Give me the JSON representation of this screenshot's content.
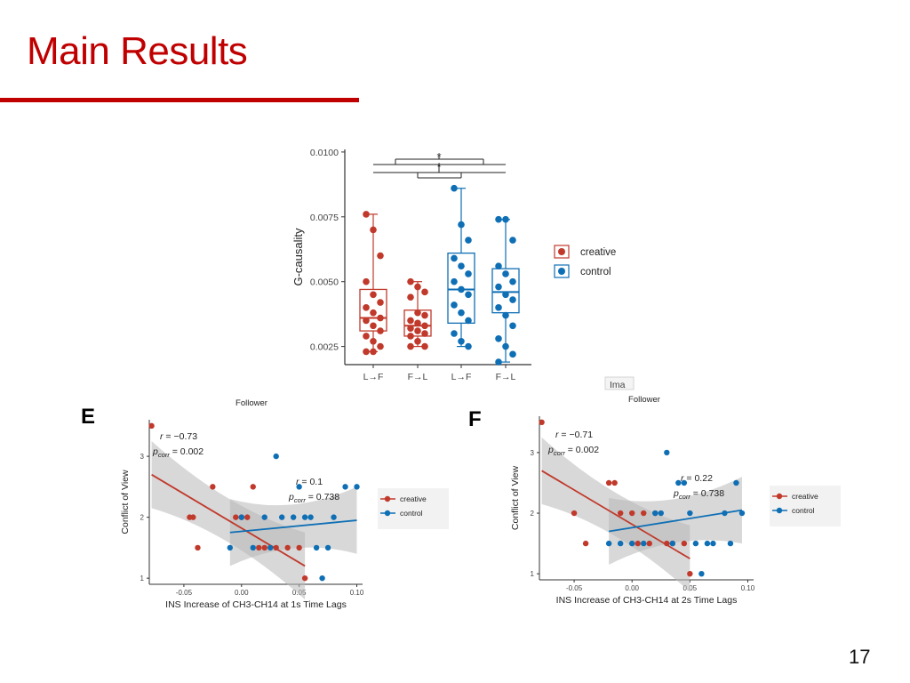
{
  "slide": {
    "title": "Main Results",
    "page_number": "17"
  },
  "fragment_text": "Ima",
  "colors": {
    "creative": "#c0392b",
    "control": "#0f6fb5",
    "title": "#c00000",
    "ci_band": "#b8b8b8"
  },
  "chart_data": [
    {
      "type": "box",
      "id": "boxplot",
      "title": "",
      "ylabel": "G-causality",
      "xlabel": "",
      "ylim": [
        0.0018,
        0.0101
      ],
      "yticks": [
        "0.0025",
        "0.0050",
        "0.0075",
        "0.0100"
      ],
      "categories": [
        "L→F",
        "F→L",
        "L→F",
        "F→L"
      ],
      "legend": [
        "creative",
        "control"
      ],
      "legend_position": "right",
      "significance_markers": [
        "*",
        "*"
      ],
      "boxes": [
        {
          "category": "L→F",
          "group": "creative",
          "min": 0.0023,
          "q1": 0.0031,
          "median": 0.0036,
          "q3": 0.0047,
          "max": 0.0076,
          "points": [
            0.0076,
            0.007,
            0.006,
            0.005,
            0.0045,
            0.0042,
            0.004,
            0.0038,
            0.0036,
            0.0035,
            0.0033,
            0.0031,
            0.0029,
            0.0027,
            0.0025,
            0.0023,
            0.0023
          ]
        },
        {
          "category": "F→L",
          "group": "creative",
          "min": 0.0025,
          "q1": 0.0029,
          "median": 0.0033,
          "q3": 0.0039,
          "max": 0.005,
          "points": [
            0.005,
            0.0048,
            0.0046,
            0.0044,
            0.0038,
            0.0037,
            0.0035,
            0.0034,
            0.0033,
            0.0032,
            0.0031,
            0.003,
            0.0029,
            0.0027,
            0.0025,
            0.0025
          ]
        },
        {
          "category": "L→F",
          "group": "control",
          "min": 0.0025,
          "q1": 0.0034,
          "median": 0.0047,
          "q3": 0.0061,
          "max": 0.0086,
          "points": [
            0.0086,
            0.0072,
            0.0066,
            0.0059,
            0.0056,
            0.0053,
            0.005,
            0.0047,
            0.0045,
            0.0041,
            0.0038,
            0.0035,
            0.003,
            0.0027,
            0.0025
          ]
        },
        {
          "category": "F→L",
          "group": "control",
          "min": 0.0019,
          "q1": 0.0038,
          "median": 0.0046,
          "q3": 0.0055,
          "max": 0.0074,
          "points": [
            0.0074,
            0.0074,
            0.0066,
            0.0056,
            0.0053,
            0.005,
            0.0048,
            0.0045,
            0.0043,
            0.004,
            0.0037,
            0.0033,
            0.0028,
            0.0025,
            0.0022,
            0.0019
          ]
        }
      ]
    },
    {
      "type": "scatter",
      "id": "scatter-e",
      "panel_label": "E",
      "title": "Follower",
      "xlabel": "INS Increase of CH3-CH14 at 1s Time Lags",
      "ylabel": "Conflict of View",
      "xlim": [
        -0.08,
        0.105
      ],
      "ylim": [
        0.9,
        3.6
      ],
      "xticks": [
        "-0.05",
        "0.00",
        "0.05",
        "0.10"
      ],
      "yticks": [
        "1",
        "2",
        "3"
      ],
      "legend": [
        "creative",
        "control"
      ],
      "legend_position": "right",
      "series": [
        {
          "name": "creative",
          "points": [
            [
              -0.078,
              3.5
            ],
            [
              -0.045,
              2.0
            ],
            [
              -0.042,
              2.0
            ],
            [
              -0.038,
              1.5
            ],
            [
              -0.025,
              2.5
            ],
            [
              -0.005,
              2.0
            ],
            [
              0.0,
              2.0
            ],
            [
              0.005,
              2.0
            ],
            [
              0.01,
              2.5
            ],
            [
              0.015,
              1.5
            ],
            [
              0.02,
              1.5
            ],
            [
              0.03,
              1.5
            ],
            [
              0.04,
              1.5
            ],
            [
              0.05,
              1.5
            ],
            [
              0.055,
              1.0
            ]
          ],
          "fit": [
            [
              -0.078,
              2.7
            ],
            [
              0.055,
              1.2
            ]
          ],
          "stats": [
            "r = −0.73",
            "p_corr = 0.002"
          ]
        },
        {
          "name": "control",
          "points": [
            [
              -0.01,
              1.5
            ],
            [
              0.0,
              2.0
            ],
            [
              0.01,
              1.5
            ],
            [
              0.02,
              2.0
            ],
            [
              0.025,
              1.5
            ],
            [
              0.03,
              3.0
            ],
            [
              0.035,
              2.0
            ],
            [
              0.045,
              2.0
            ],
            [
              0.05,
              2.5
            ],
            [
              0.055,
              2.0
            ],
            [
              0.06,
              2.0
            ],
            [
              0.065,
              1.5
            ],
            [
              0.07,
              1.0
            ],
            [
              0.075,
              1.5
            ],
            [
              0.08,
              2.0
            ],
            [
              0.09,
              2.5
            ],
            [
              0.1,
              2.5
            ]
          ],
          "fit": [
            [
              -0.01,
              1.75
            ],
            [
              0.1,
              1.95
            ]
          ],
          "stats": [
            "r = 0.1",
            "p_corr = 0.738"
          ]
        }
      ]
    },
    {
      "type": "scatter",
      "id": "scatter-f",
      "panel_label": "F",
      "title": "Follower",
      "xlabel": "INS Increase of CH3-CH14 at 2s Time Lags",
      "ylabel": "Conflict of View",
      "xlim": [
        -0.08,
        0.105
      ],
      "ylim": [
        0.9,
        3.6
      ],
      "xticks": [
        "-0.05",
        "0.00",
        "0.05",
        "0.10"
      ],
      "yticks": [
        "1",
        "2",
        "3"
      ],
      "legend": [
        "creative",
        "control"
      ],
      "legend_position": "right",
      "series": [
        {
          "name": "creative",
          "points": [
            [
              -0.078,
              3.5
            ],
            [
              -0.05,
              2.0
            ],
            [
              -0.04,
              1.5
            ],
            [
              -0.02,
              2.5
            ],
            [
              -0.015,
              2.5
            ],
            [
              -0.01,
              2.0
            ],
            [
              0.0,
              2.0
            ],
            [
              0.005,
              1.5
            ],
            [
              0.01,
              2.0
            ],
            [
              0.015,
              1.5
            ],
            [
              0.02,
              2.0
            ],
            [
              0.03,
              1.5
            ],
            [
              0.035,
              1.5
            ],
            [
              0.045,
              1.5
            ],
            [
              0.05,
              1.0
            ]
          ],
          "fit": [
            [
              -0.078,
              2.7
            ],
            [
              0.05,
              1.25
            ]
          ],
          "stats": [
            "r = −0.71",
            "p_corr = 0.002"
          ]
        },
        {
          "name": "control",
          "points": [
            [
              -0.02,
              1.5
            ],
            [
              -0.01,
              1.5
            ],
            [
              0.0,
              1.5
            ],
            [
              0.01,
              1.5
            ],
            [
              0.02,
              2.0
            ],
            [
              0.025,
              2.0
            ],
            [
              0.03,
              3.0
            ],
            [
              0.035,
              1.5
            ],
            [
              0.04,
              2.5
            ],
            [
              0.045,
              2.5
            ],
            [
              0.05,
              2.0
            ],
            [
              0.055,
              1.5
            ],
            [
              0.06,
              1.0
            ],
            [
              0.065,
              1.5
            ],
            [
              0.07,
              1.5
            ],
            [
              0.08,
              2.0
            ],
            [
              0.085,
              1.5
            ],
            [
              0.09,
              2.5
            ],
            [
              0.095,
              2.0
            ]
          ],
          "fit": [
            [
              -0.02,
              1.7
            ],
            [
              0.095,
              2.05
            ]
          ],
          "stats": [
            "r = 0.22",
            "p_corr = 0.738"
          ]
        }
      ]
    }
  ]
}
